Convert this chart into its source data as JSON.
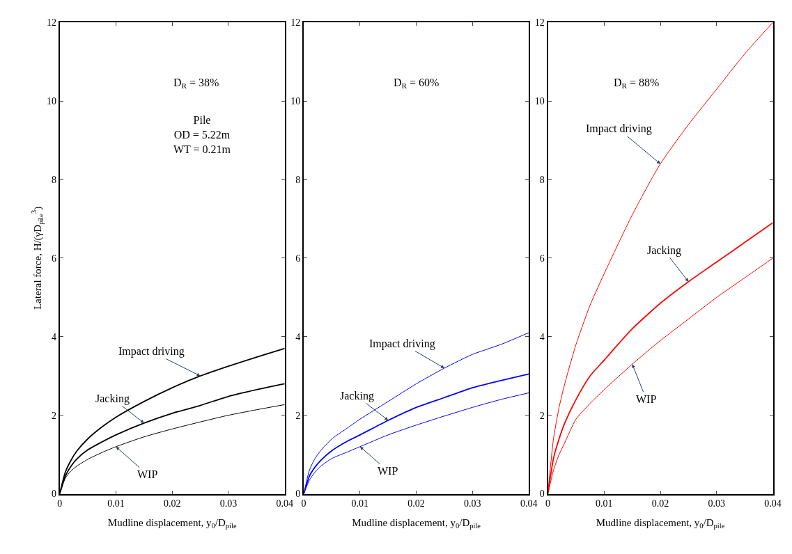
{
  "chart_data": [
    {
      "type": "line",
      "xlabel": "Mudline displacement, y$_{0}$/D$_{pile}$",
      "ylabel": "Lateral force, H/(γD$_{pile}$$^{3}$)",
      "xlim": [
        0,
        0.04
      ],
      "xticks": [
        0,
        0.01,
        0.02,
        0.03,
        0.04
      ],
      "ylim": [
        0,
        12
      ],
      "yticks": [
        0,
        2,
        4,
        6,
        8,
        10,
        12
      ],
      "x": [
        0,
        0.001,
        0.002,
        0.003,
        0.005,
        0.0075,
        0.01,
        0.015,
        0.02,
        0.025,
        0.03,
        0.035,
        0.04
      ],
      "series": [
        {
          "color": "#000000",
          "values": [
            0,
            0.55,
            0.85,
            1.08,
            1.4,
            1.7,
            1.95,
            2.35,
            2.7,
            3.0,
            3.25,
            3.48,
            3.7
          ]
        },
        {
          "color": "#000000",
          "values": [
            0,
            0.45,
            0.7,
            0.88,
            1.12,
            1.32,
            1.5,
            1.8,
            2.05,
            2.25,
            2.48,
            2.65,
            2.8
          ]
        },
        {
          "color": "#000000",
          "values": [
            0,
            0.4,
            0.58,
            0.7,
            0.88,
            1.05,
            1.2,
            1.45,
            1.65,
            1.83,
            2.0,
            2.14,
            2.27
          ]
        }
      ],
      "annotations": [
        "D$_{R}$ = 38%",
        "Pile\nOD = 5.22m\nWT = 0.21m",
        {
          "text": "Impact driving",
          "x": 0.025,
          "y": 3.0
        },
        {
          "text": "Jacking",
          "x": 0.015,
          "y": 1.8
        },
        {
          "text": "WIP",
          "x": 0.01,
          "y": 1.2
        }
      ]
    },
    {
      "type": "line",
      "xlabel": "Mudline displacement, y$_{0}$/D$_{pile}$",
      "xlim": [
        0,
        0.04
      ],
      "xticks": [
        0,
        0.01,
        0.02,
        0.03,
        0.04
      ],
      "ylim": [
        0,
        12
      ],
      "yticks": [
        0,
        2,
        4,
        6,
        8,
        10,
        12
      ],
      "x": [
        0,
        0.001,
        0.002,
        0.003,
        0.005,
        0.0075,
        0.01,
        0.015,
        0.02,
        0.025,
        0.03,
        0.035,
        0.04
      ],
      "series": [
        {
          "color": "#0000ff",
          "values": [
            0,
            0.6,
            0.9,
            1.1,
            1.4,
            1.65,
            1.9,
            2.35,
            2.8,
            3.2,
            3.55,
            3.8,
            4.1
          ]
        },
        {
          "color": "#0000ff",
          "values": [
            0,
            0.45,
            0.68,
            0.85,
            1.1,
            1.32,
            1.5,
            1.87,
            2.2,
            2.45,
            2.7,
            2.88,
            3.05
          ]
        },
        {
          "color": "#0000ff",
          "values": [
            0,
            0.35,
            0.55,
            0.7,
            0.9,
            1.05,
            1.2,
            1.5,
            1.75,
            1.98,
            2.2,
            2.4,
            2.57
          ]
        }
      ],
      "annotations": [
        "D$_{R}$ = 60%",
        {
          "text": "Impact driving",
          "x": 0.025,
          "y": 3.2
        },
        {
          "text": "Jacking",
          "x": 0.015,
          "y": 1.87
        },
        {
          "text": "WIP",
          "x": 0.01,
          "y": 1.2
        }
      ]
    },
    {
      "type": "line",
      "xlabel": "Mudline displacement, y$_{0}$/D$_{pile}$",
      "xlim": [
        0,
        0.04
      ],
      "xticks": [
        0,
        0.01,
        0.02,
        0.03,
        0.04
      ],
      "ylim": [
        0,
        12
      ],
      "yticks": [
        0,
        2,
        4,
        6,
        8,
        10,
        12
      ],
      "x": [
        0,
        0.001,
        0.002,
        0.003,
        0.005,
        0.0075,
        0.01,
        0.015,
        0.02,
        0.025,
        0.03,
        0.035,
        0.04
      ],
      "series": [
        {
          "color": "#ff0000",
          "values": [
            0,
            1.4,
            2.2,
            2.8,
            3.8,
            4.8,
            5.6,
            7.1,
            8.4,
            9.4,
            10.3,
            11.2,
            12.0
          ]
        },
        {
          "color": "#ff0000",
          "values": [
            0,
            0.9,
            1.4,
            1.8,
            2.4,
            3.0,
            3.4,
            4.2,
            4.85,
            5.4,
            5.9,
            6.4,
            6.9
          ]
        },
        {
          "color": "#ff0000",
          "values": [
            0,
            0.6,
            1.0,
            1.3,
            1.9,
            2.3,
            2.65,
            3.3,
            3.9,
            4.45,
            5.0,
            5.5,
            6.0
          ]
        }
      ],
      "annotations": [
        "D$_{R}$ = 88%",
        {
          "text": "Impact driving",
          "x": 0.02,
          "y": 8.4
        },
        {
          "text": "Jacking",
          "x": 0.025,
          "y": 5.4
        },
        {
          "text": "WIP",
          "x": 0.015,
          "y": 3.3
        }
      ]
    }
  ]
}
